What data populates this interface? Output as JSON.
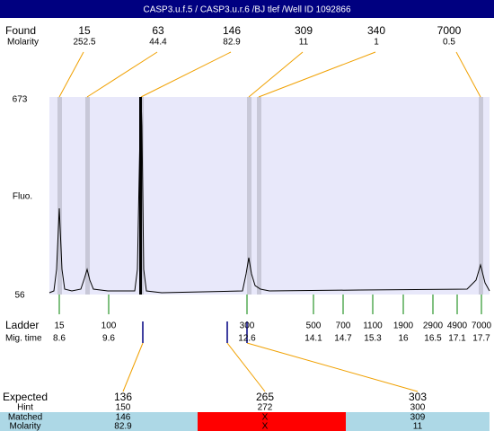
{
  "title": "CASP3.u.f.5 / CASP3.u.r.6 /BJ tlef /Well ID 1092866",
  "found": {
    "label": "Found",
    "sublabel": "Molarity",
    "sizes": [
      "15",
      "63",
      "146",
      "309",
      "340",
      "7000"
    ],
    "molarity": [
      "252.5",
      "44.4",
      "82.9",
      "11",
      "1",
      "0.5"
    ]
  },
  "axis": {
    "label": "Fluo.",
    "top": "673",
    "bottom": "56"
  },
  "ladder": {
    "label": "Ladder",
    "sublabel": "Mig. time",
    "sizes": [
      "15",
      "100",
      "300",
      "500",
      "700",
      "1100",
      "1900",
      "2900",
      "4900",
      "7000"
    ],
    "times": [
      "8.6",
      "9.6",
      "12.6",
      "14.1",
      "14.7",
      "15.3",
      "16",
      "16.5",
      "17.1",
      "17.7"
    ]
  },
  "expected": {
    "labels": [
      "Expected",
      "Hint",
      "Matched",
      "Molarity"
    ],
    "columns": [
      {
        "expected": "136",
        "hint": "150",
        "matched": "146",
        "molarity": "82.9"
      },
      {
        "expected": "265",
        "hint": "272",
        "matched": "X",
        "molarity": "X"
      },
      {
        "expected": "303",
        "hint": "300",
        "matched": "309",
        "molarity": "11"
      }
    ]
  }
}
